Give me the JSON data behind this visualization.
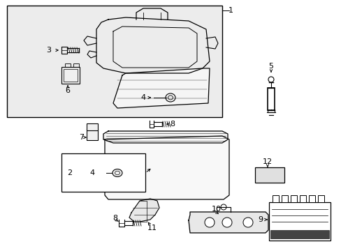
{
  "background_color": "#ffffff",
  "line_color": "#000000",
  "gray_fill": "#f0f0f0",
  "light_fill": "#f8f8f8"
}
